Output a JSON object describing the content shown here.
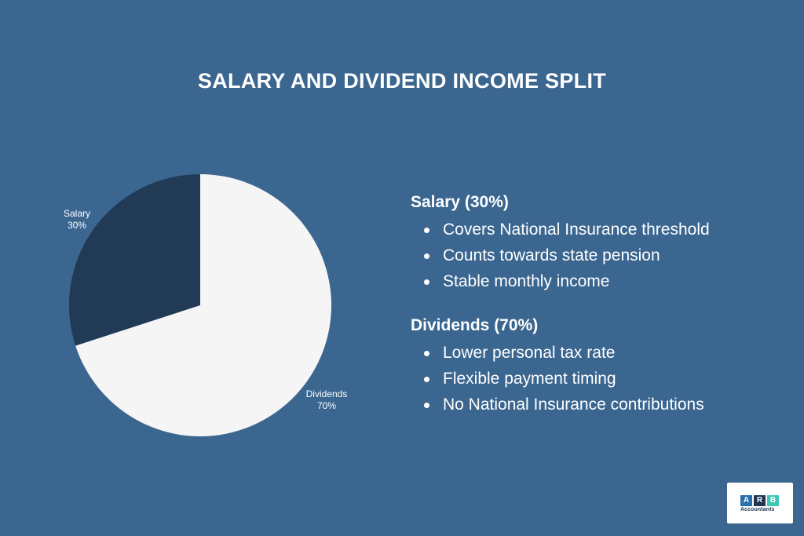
{
  "title": "SALARY AND DIVIDEND INCOME SPLIT",
  "chart_data": {
    "type": "pie",
    "slices": [
      {
        "label": "Salary",
        "value": 30,
        "value_label": "30%",
        "color": "#213a55"
      },
      {
        "label": "Dividends",
        "value": 70,
        "value_label": "70%",
        "color": "#f5f5f6"
      }
    ]
  },
  "details": [
    {
      "heading": "Salary (30%)",
      "bullets": [
        "Covers National Insurance threshold",
        "Counts towards state pension",
        "Stable monthly income"
      ]
    },
    {
      "heading": "Dividends (70%)",
      "bullets": [
        "Lower personal tax rate",
        "Flexible payment timing",
        "No National Insurance contributions"
      ]
    }
  ],
  "logo": {
    "letters": [
      "A",
      "R",
      "B"
    ],
    "letter_colors": [
      "#2a6fb0",
      "#1f3550",
      "#3ec7b5"
    ],
    "subtitle": "Accountants"
  },
  "colors": {
    "background": "#3a6690",
    "text": "#ffffff"
  }
}
